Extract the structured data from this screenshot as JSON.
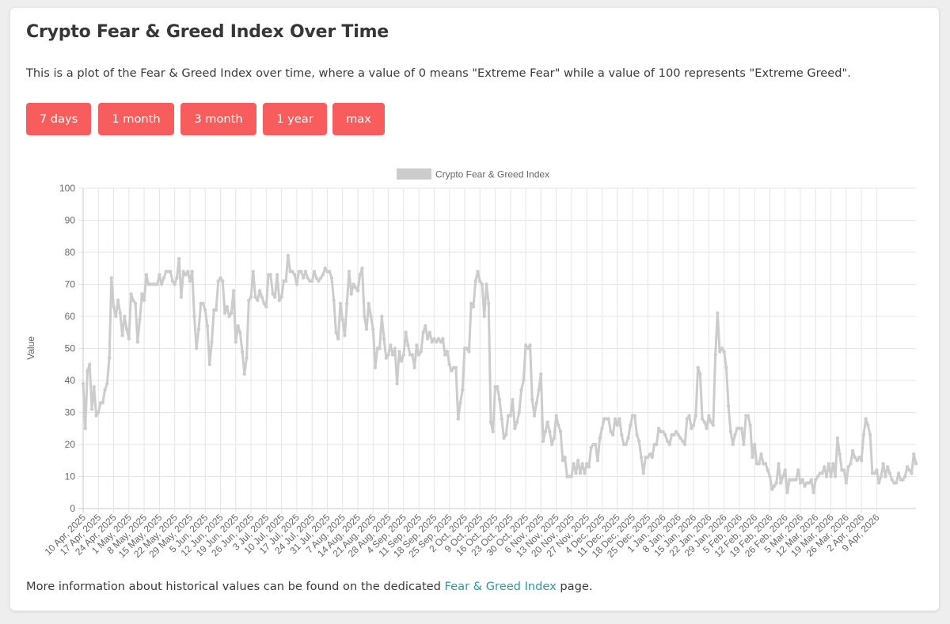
{
  "page": {
    "title": "Crypto Fear & Greed Index Over Time",
    "description": "This is a plot of the Fear & Greed Index over time, where a value of 0 means \"Extreme Fear\" while a value of 100 represents \"Extreme Greed\".",
    "footer_prefix": "More information about historical values can be found on the dedicated ",
    "footer_link": "Fear & Greed Index",
    "footer_suffix": " page.",
    "link_color": "#2a9aa3"
  },
  "buttons": [
    {
      "label": "7 days"
    },
    {
      "label": "1 month"
    },
    {
      "label": "3 month"
    },
    {
      "label": "1 year"
    },
    {
      "label": "max"
    }
  ],
  "colors": {
    "button": "#f75d5d",
    "line": "#cccccc"
  },
  "chart_data": {
    "type": "line",
    "title": "",
    "legend": "top-center",
    "grid": true,
    "xlabel": "",
    "ylabel": "Value",
    "ylim": [
      0,
      100
    ],
    "yticks": [
      0,
      10,
      20,
      30,
      40,
      50,
      60,
      70,
      80,
      90,
      100
    ],
    "x_start": "10 Apr 2025",
    "x_ticks": [
      "10 Apr, 2025",
      "17 Apr, 2025",
      "24 Apr, 2025",
      "1 May, 2025",
      "8 May, 2025",
      "15 May, 2025",
      "22 May, 2025",
      "29 May, 2025",
      "5 Jun, 2025",
      "12 Jun, 2025",
      "19 Jun, 2025",
      "26 Jun, 2025",
      "3 Jul, 2025",
      "10 Jul, 2025",
      "17 Jul, 2025",
      "24 Jul, 2025",
      "31 Jul, 2025",
      "7 Aug, 2025",
      "14 Aug, 2025",
      "21 Aug, 2025",
      "28 Aug, 2025",
      "4 Sep, 2025",
      "11 Sep, 2025",
      "18 Sep, 2025",
      "25 Sep, 2025",
      "2 Oct, 2025",
      "9 Oct, 2025",
      "16 Oct, 2025",
      "23 Oct, 2025",
      "30 Oct, 2025",
      "6 Nov, 2025",
      "13 Nov, 2025",
      "20 Nov, 2025",
      "27 Nov, 2025",
      "4 Dec, 2025",
      "11 Dec, 2025",
      "18 Dec, 2025",
      "25 Dec, 2025",
      "1 Jan, 2026",
      "8 Jan, 2026",
      "15 Jan, 2026",
      "22 Jan, 2026",
      "29 Jan, 2026",
      "5 Feb, 2026",
      "12 Feb, 2026",
      "19 Feb, 2026",
      "26 Feb, 2026",
      "5 Mar, 2026",
      "12 Mar, 2026",
      "19 Mar, 2026",
      "26 Mar, 2026",
      "2 Apr, 2026",
      "9 Apr, 2026"
    ],
    "series": [
      {
        "name": "Crypto Fear & Greed Index",
        "color": "#cccccc",
        "values": [
          39,
          25,
          43,
          45,
          31,
          38,
          29,
          30,
          33,
          33,
          37,
          39,
          47,
          72,
          63,
          60,
          65,
          61,
          54,
          60,
          56,
          53,
          67,
          65,
          64,
          52,
          59,
          67,
          65,
          73,
          70,
          70,
          70,
          70,
          70,
          73,
          70,
          72,
          74,
          74,
          74,
          71,
          70,
          72,
          78,
          66,
          74,
          73,
          74,
          71,
          74,
          60,
          50,
          56,
          64,
          64,
          62,
          57,
          45,
          52,
          62,
          62,
          71,
          72,
          71,
          61,
          63,
          60,
          61,
          68,
          52,
          57,
          55,
          49,
          42,
          47,
          65,
          66,
          74,
          66,
          65,
          68,
          66,
          64,
          63,
          73,
          73,
          67,
          66,
          73,
          65,
          66,
          71,
          71,
          79,
          74,
          74,
          73,
          70,
          74,
          74,
          72,
          74,
          72,
          71,
          71,
          74,
          72,
          71,
          72,
          73,
          75,
          74,
          74,
          72,
          65,
          55,
          53,
          64,
          59,
          54,
          64,
          74,
          67,
          70,
          69,
          68,
          73,
          75,
          60,
          56,
          64,
          60,
          56,
          44,
          50,
          50,
          60,
          53,
          47,
          48,
          51,
          48,
          50,
          39,
          49,
          46,
          48,
          55,
          51,
          48,
          48,
          44,
          51,
          48,
          49,
          55,
          57,
          53,
          55,
          52,
          53,
          52,
          53,
          52,
          53,
          48,
          49,
          45,
          43,
          44,
          44,
          28,
          33,
          37,
          50,
          50,
          49,
          64,
          63,
          71,
          74,
          71,
          70,
          60,
          70,
          64,
          27,
          24,
          38,
          38,
          34,
          28,
          22,
          23,
          29,
          29,
          34,
          25,
          27,
          30,
          37,
          40,
          51,
          50,
          51,
          34,
          29,
          33,
          37,
          42,
          21,
          24,
          27,
          24,
          20,
          22,
          29,
          26,
          24,
          15,
          16,
          10,
          10,
          10,
          14,
          11,
          15,
          11,
          14,
          11,
          14,
          13,
          19,
          20,
          20,
          15,
          22,
          25,
          28,
          28,
          28,
          24,
          23,
          28,
          26,
          28,
          23,
          20,
          20,
          22,
          26,
          29,
          29,
          23,
          21,
          16,
          11,
          16,
          16,
          17,
          16,
          20,
          20,
          25,
          24,
          24,
          23,
          21,
          20,
          23,
          23,
          24,
          23,
          22,
          21,
          20,
          28,
          29,
          25,
          26,
          29,
          44,
          42,
          28,
          27,
          25,
          29,
          27,
          26,
          48,
          61,
          49,
          50,
          49,
          44,
          32,
          24,
          20,
          23,
          25,
          25,
          25,
          20,
          29,
          29,
          26,
          16,
          20,
          14,
          14,
          17,
          14,
          14,
          12,
          10,
          6,
          7,
          8,
          14,
          8,
          10,
          12,
          5,
          9,
          9,
          9,
          9,
          12,
          8,
          9,
          7,
          8,
          8,
          9,
          5,
          9,
          10,
          11,
          11,
          13,
          10,
          14,
          10,
          14,
          10,
          22,
          17,
          12,
          12,
          8,
          13,
          14,
          18,
          16,
          15,
          16,
          15,
          23,
          28,
          26,
          23,
          11,
          11,
          12,
          8,
          10,
          14,
          10,
          13,
          11,
          9,
          8,
          8,
          11,
          9,
          9,
          10,
          13,
          12,
          11,
          17,
          14
        ]
      }
    ]
  }
}
